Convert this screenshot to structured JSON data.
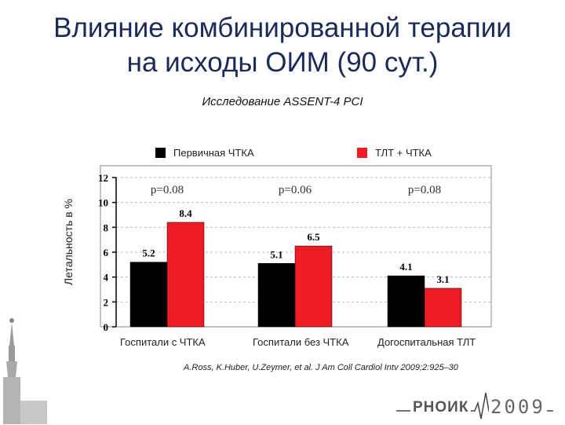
{
  "slide": {
    "title_line1": "Влияние комбинированной терапии",
    "title_line2": "на исходы ОИМ (90 сут.)",
    "subtitle": "Исследование ASSENT-4 PCI",
    "citation": "A.Ross, K.Huber, U.Zeymer, et al. J Am Coll Cardiol Intv 2009;2:925–30",
    "logo_text": "РНОИК",
    "logo_year": "2009"
  },
  "chart_data": {
    "type": "bar",
    "categories": [
      "Госпитали с ЧТКА",
      "Госпитали без ЧТКА",
      "Догоспитальная ТЛТ"
    ],
    "series": [
      {
        "name": "Первичная ЧТКА",
        "values": [
          5.2,
          5.1,
          4.1
        ],
        "labels": [
          "5.2",
          "5.1",
          "4.1"
        ],
        "color": "#000000"
      },
      {
        "name": "ТЛТ + ЧТКА",
        "values": [
          8.4,
          6.5,
          3.1
        ],
        "labels": [
          "8.4",
          "6.5",
          "3.1"
        ],
        "color": "#ee1c25"
      }
    ],
    "pvalues": [
      "p=0.08",
      "p=0.06",
      "p=0.08"
    ],
    "ylabel": "Летальность в %",
    "ylim": [
      0,
      12
    ],
    "yticks": [
      0,
      2,
      4,
      6,
      8,
      10,
      12
    ],
    "yticklabels": [
      "0",
      "2",
      "4",
      "6",
      "8",
      "10",
      "12"
    ],
    "grid": true,
    "legend": "top"
  }
}
